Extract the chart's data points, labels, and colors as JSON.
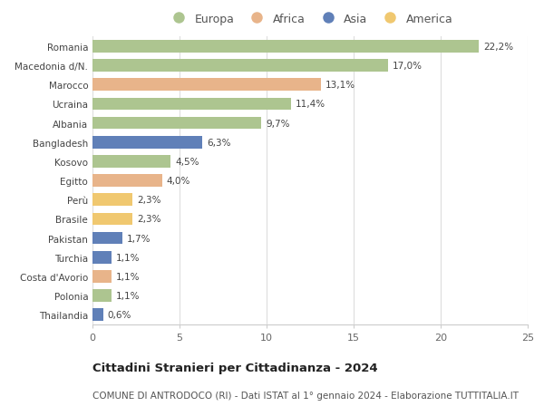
{
  "categories": [
    "Romania",
    "Macedonia d/N.",
    "Marocco",
    "Ucraina",
    "Albania",
    "Bangladesh",
    "Kosovo",
    "Egitto",
    "Perù",
    "Brasile",
    "Pakistan",
    "Turchia",
    "Costa d'Avorio",
    "Polonia",
    "Thailandia"
  ],
  "values": [
    22.2,
    17.0,
    13.1,
    11.4,
    9.7,
    6.3,
    4.5,
    4.0,
    2.3,
    2.3,
    1.7,
    1.1,
    1.1,
    1.1,
    0.6
  ],
  "labels": [
    "22,2%",
    "17,0%",
    "13,1%",
    "11,4%",
    "9,7%",
    "6,3%",
    "4,5%",
    "4,0%",
    "2,3%",
    "2,3%",
    "1,7%",
    "1,1%",
    "1,1%",
    "1,1%",
    "0,6%"
  ],
  "continents": [
    "Europa",
    "Europa",
    "Africa",
    "Europa",
    "Europa",
    "Asia",
    "Europa",
    "Africa",
    "America",
    "America",
    "Asia",
    "Asia",
    "Africa",
    "Europa",
    "Asia"
  ],
  "continent_colors": {
    "Europa": "#adc590",
    "Africa": "#e8b48a",
    "Asia": "#6080b8",
    "America": "#f0c870"
  },
  "legend_order": [
    "Europa",
    "Africa",
    "Asia",
    "America"
  ],
  "title": "Cittadini Stranieri per Cittadinanza - 2024",
  "subtitle": "COMUNE DI ANTRODOCO (RI) - Dati ISTAT al 1° gennaio 2024 - Elaborazione TUTTITALIA.IT",
  "xlim": [
    0,
    25
  ],
  "xticks": [
    0,
    5,
    10,
    15,
    20,
    25
  ],
  "background_color": "#ffffff",
  "grid_color": "#dddddd",
  "bar_height": 0.65,
  "label_fontsize": 7.5,
  "title_fontsize": 9.5,
  "subtitle_fontsize": 7.5,
  "ytick_fontsize": 7.5,
  "xtick_fontsize": 8,
  "legend_fontsize": 9
}
